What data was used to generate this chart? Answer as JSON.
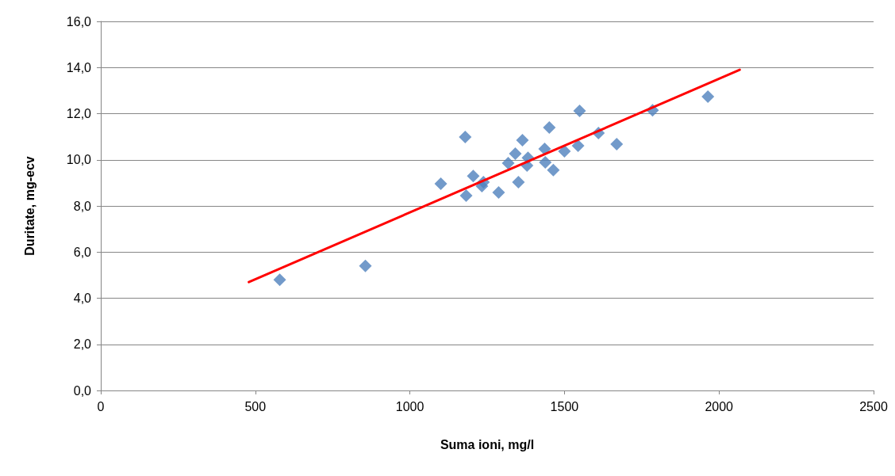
{
  "chart_data": {
    "type": "scatter",
    "xlabel": "Suma ioni, mg/l",
    "ylabel": "Duritate, mg-ecv",
    "xlim": [
      0,
      2500
    ],
    "xticks": [
      0,
      500,
      1000,
      1500,
      2000,
      2500
    ],
    "ylim": [
      0,
      16
    ],
    "yticks": [
      {
        "value": 0,
        "label": "0,0"
      },
      {
        "value": 2,
        "label": "2,0"
      },
      {
        "value": 4,
        "label": "4,0"
      },
      {
        "value": 6,
        "label": "6,0"
      },
      {
        "value": 8,
        "label": "8,0"
      },
      {
        "value": 10,
        "label": "10,0"
      },
      {
        "value": 12,
        "label": "12,0"
      },
      {
        "value": 14,
        "label": "14,0"
      },
      {
        "value": 16,
        "label": "16,0"
      }
    ],
    "grid": "y",
    "marker": "diamond",
    "series": [
      {
        "color": "#4f81bd",
        "x": [
          579,
          856,
          1100,
          1179,
          1182,
          1205,
          1238,
          1233,
          1287,
          1351,
          1318,
          1341,
          1364,
          1382,
          1379,
          1436,
          1438,
          1464,
          1451,
          1500,
          1544,
          1610,
          1549,
          1669,
          1785,
          1964
        ],
        "values": [
          4.8,
          5.4,
          8.96,
          10.99,
          8.45,
          9.3,
          9.03,
          8.86,
          8.58,
          9.03,
          9.85,
          10.27,
          10.85,
          10.09,
          9.75,
          10.47,
          9.89,
          9.55,
          11.4,
          10.37,
          10.61,
          11.16,
          12.12,
          10.68,
          12.15,
          12.74
        ]
      },
      {
        "type": "line",
        "color": "#ff0000",
        "marker": "none",
        "line_style": "solid",
        "x": [
          479,
          2067
        ],
        "values": [
          4.7,
          13.9
        ]
      }
    ]
  }
}
